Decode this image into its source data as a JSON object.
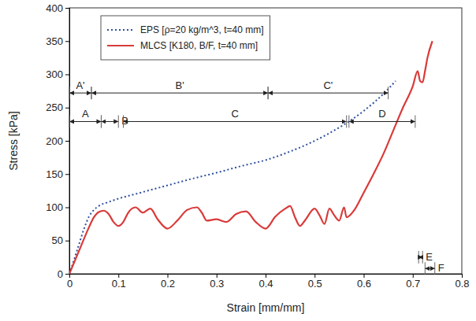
{
  "chart_data": {
    "type": "line",
    "x_label": "Strain [mm/mm]",
    "y_label": "Stress [kPa]",
    "xlim": [
      0,
      0.8
    ],
    "xticks": [
      0,
      0.1,
      0.2,
      0.3,
      0.4,
      0.5,
      0.6,
      0.7,
      0.8
    ],
    "ylim": [
      0,
      400
    ],
    "yticks": [
      0,
      50,
      100,
      150,
      200,
      250,
      300,
      350,
      400
    ],
    "grid": false,
    "legend": "upper left",
    "series": [
      {
        "name": "EPS [ρ=20 kg/m^3, t=40 mm]",
        "color": "#2e4f9e",
        "line_style": "dotted",
        "x": [
          0,
          0.01,
          0.02,
          0.03,
          0.04,
          0.05,
          0.06,
          0.08,
          0.1,
          0.15,
          0.2,
          0.25,
          0.3,
          0.35,
          0.4,
          0.45,
          0.5,
          0.55,
          0.6,
          0.65,
          0.665
        ],
        "values": [
          0,
          22,
          45,
          68,
          86,
          96,
          102,
          108,
          113,
          123,
          133,
          143,
          152,
          162,
          171,
          184,
          200,
          220,
          245,
          278,
          290
        ]
      },
      {
        "name": "MLCS [K180, B/F, t=40 mm]",
        "color": "#d93a3a",
        "line_style": "solid",
        "x": [
          0,
          0.02,
          0.04,
          0.05,
          0.06,
          0.07,
          0.08,
          0.09,
          0.1,
          0.11,
          0.12,
          0.135,
          0.15,
          0.165,
          0.18,
          0.2,
          0.22,
          0.24,
          0.26,
          0.27,
          0.28,
          0.3,
          0.32,
          0.34,
          0.36,
          0.38,
          0.4,
          0.42,
          0.44,
          0.45,
          0.46,
          0.47,
          0.48,
          0.5,
          0.51,
          0.52,
          0.53,
          0.54,
          0.55,
          0.56,
          0.565,
          0.58,
          0.6,
          0.62,
          0.64,
          0.66,
          0.68,
          0.7,
          0.71,
          0.715,
          0.72,
          0.725,
          0.73,
          0.74
        ],
        "values": [
          0,
          35,
          70,
          85,
          93,
          95,
          90,
          78,
          72,
          78,
          92,
          100,
          92,
          98,
          82,
          68,
          80,
          96,
          100,
          92,
          80,
          82,
          78,
          90,
          94,
          78,
          68,
          86,
          98,
          102,
          85,
          72,
          80,
          98,
          88,
          75,
          98,
          88,
          80,
          100,
          85,
          95,
          122,
          150,
          180,
          215,
          250,
          282,
          305,
          290,
          288,
          305,
          325,
          350
        ]
      }
    ],
    "regions": [
      {
        "label": "A'",
        "x0": 0,
        "x1": 0.045,
        "y": 272
      },
      {
        "label": "B'",
        "x0": 0.045,
        "x1": 0.405,
        "y": 272
      },
      {
        "label": "C'",
        "x0": 0.405,
        "x1": 0.65,
        "y": 272
      },
      {
        "label": "A",
        "x0": 0,
        "x1": 0.065,
        "y": 229
      },
      {
        "label": "B",
        "x0": 0.065,
        "x1": 0.1,
        "y": 229
      },
      {
        "label": "C",
        "x0": 0.11,
        "x1": 0.565,
        "y": 229
      },
      {
        "label": "D",
        "x0": 0.57,
        "x1": 0.705,
        "y": 229
      },
      {
        "label": "E",
        "x0": 0.712,
        "x1": 0.72,
        "y": 25
      },
      {
        "label": "F",
        "x0": 0.725,
        "x1": 0.745,
        "y": 8
      }
    ]
  }
}
